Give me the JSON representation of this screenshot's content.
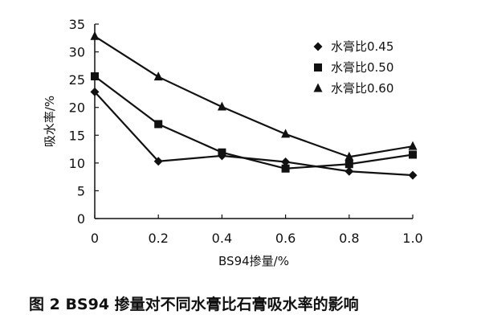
{
  "figure_caption": "图 2   BS94 掺量对不同水膏比石膏吸水率的影响",
  "chart_data": {
    "type": "line",
    "title": "",
    "xlabel": "BS94掺量/%",
    "ylabel": "吸水率/%",
    "x": [
      0,
      0.2,
      0.4,
      0.6,
      0.8,
      1.0
    ],
    "x_tick_labels": [
      "0",
      "0.2",
      "0.4",
      "0.6",
      "0.8",
      "1.0"
    ],
    "xlim": [
      0,
      1.0
    ],
    "ylim": [
      0,
      35
    ],
    "y_ticks": [
      0,
      5,
      10,
      15,
      20,
      25,
      30,
      35
    ],
    "y_tick_labels": [
      "0",
      "5",
      "10",
      "15",
      "20",
      "25",
      "30",
      "35"
    ],
    "grid": false,
    "legend_position": "top-right",
    "series": [
      {
        "name": "水膏比0.45",
        "marker": "diamond",
        "values": [
          22.8,
          10.3,
          11.3,
          10.2,
          8.5,
          7.8
        ]
      },
      {
        "name": "水膏比0.50",
        "marker": "square",
        "values": [
          25.6,
          17.0,
          11.9,
          9.0,
          9.8,
          11.5
        ]
      },
      {
        "name": "水膏比0.60",
        "marker": "triangle",
        "values": [
          32.8,
          25.5,
          20.1,
          15.2,
          11.1,
          13.0
        ]
      }
    ]
  }
}
